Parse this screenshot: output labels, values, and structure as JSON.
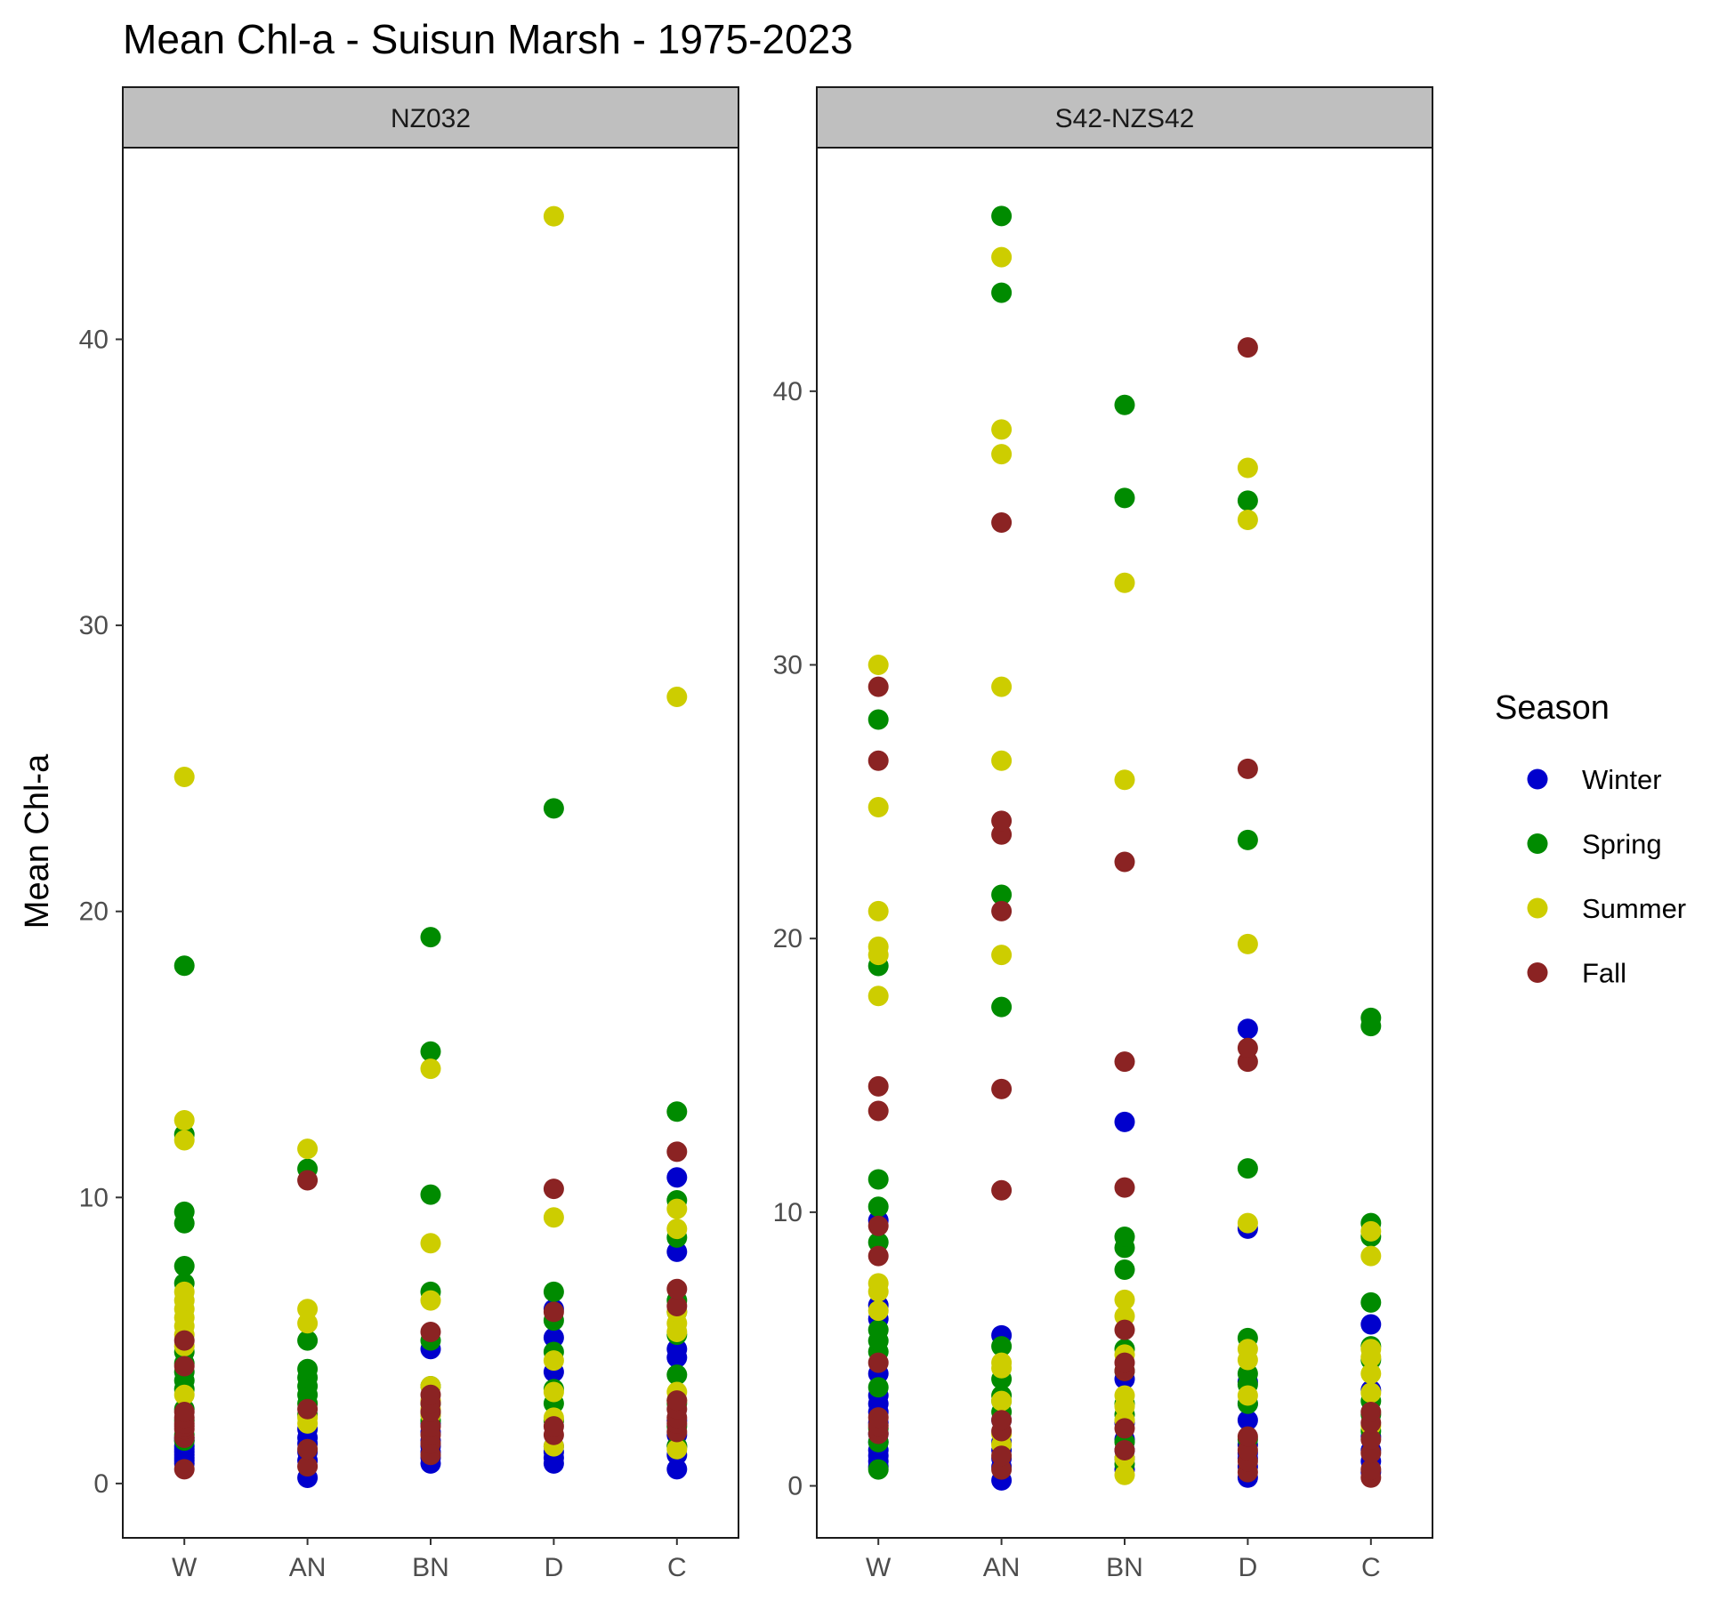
{
  "chart_data": {
    "type": "scatter",
    "title": "Mean Chl-a - Suisun Marsh - 1975-2023",
    "ylabel": "Mean Chl-a",
    "xlabel": "",
    "categories": [
      "W",
      "AN",
      "BN",
      "D",
      "C"
    ],
    "legend": {
      "title": "Season",
      "position": "right",
      "entries": [
        {
          "name": "Winter",
          "color": "#0000CD"
        },
        {
          "name": "Spring",
          "color": "#008B00"
        },
        {
          "name": "Summer",
          "color": "#CDCD00"
        },
        {
          "name": "Fall",
          "color": "#8B2323"
        }
      ]
    },
    "grid": false,
    "panels": [
      {
        "strip": "NZ032",
        "ylim": [
          -1.9,
          46.7
        ],
        "yticks": [
          0,
          10,
          20,
          30,
          40
        ],
        "points": {
          "W": {
            "Winter": [
              0.7,
              0.8,
              0.9,
              1.0,
              1.1,
              1.2,
              1.3,
              1.5,
              1.6
            ],
            "Spring": [
              1.5,
              1.7,
              2.2,
              2.6,
              3.3,
              3.6,
              3.9,
              4.2,
              4.6,
              7.0,
              7.6,
              9.1,
              9.5,
              12.2,
              18.1
            ],
            "Summer": [
              3.1,
              4.8,
              5.2,
              5.5,
              5.8,
              6.1,
              6.4,
              6.7,
              12.0,
              12.7,
              24.7
            ],
            "Fall": [
              0.5,
              1.6,
              1.9,
              2.0,
              2.1,
              2.3,
              2.5,
              4.1,
              5.0
            ]
          },
          "AN": {
            "Winter": [
              0.2,
              0.8,
              1.1,
              1.4,
              1.6,
              1.9
            ],
            "Spring": [
              2.4,
              2.8,
              3.1,
              3.4,
              3.7,
              4.0,
              5.0,
              11.0
            ],
            "Summer": [
              2.1,
              2.3,
              5.6,
              6.1,
              11.7
            ],
            "Fall": [
              0.6,
              1.2,
              2.6,
              10.6
            ]
          },
          "BN": {
            "Winter": [
              0.7,
              0.9,
              1.1,
              1.3,
              1.5,
              1.8,
              2.1,
              2.4,
              4.7
            ],
            "Spring": [
              2.2,
              2.5,
              2.8,
              3.4,
              5.0,
              6.7,
              10.1,
              15.1,
              19.1
            ],
            "Summer": [
              2.4,
              2.6,
              2.9,
              3.4,
              6.4,
              8.4,
              14.5
            ],
            "Fall": [
              1.0,
              1.4,
              1.7,
              2.0,
              2.5,
              2.8,
              3.1,
              5.3
            ]
          },
          "D": {
            "Winter": [
              0.7,
              0.9,
              1.1,
              1.3,
              3.9,
              5.1,
              6.1
            ],
            "Spring": [
              2.2,
              2.8,
              3.3,
              4.6,
              5.7,
              6.7,
              23.6
            ],
            "Summer": [
              1.3,
              2.3,
              3.2,
              4.3,
              9.3,
              44.3
            ],
            "Fall": [
              1.7,
              2.0,
              6.0,
              10.3
            ]
          },
          "C": {
            "Winter": [
              0.5,
              1.0,
              1.3,
              1.7,
              2.2,
              4.4,
              4.7,
              8.1,
              10.7
            ],
            "Spring": [
              1.3,
              2.0,
              2.8,
              3.8,
              5.2,
              6.0,
              6.4,
              8.6,
              9.9,
              13.0
            ],
            "Summer": [
              1.2,
              2.9,
              3.2,
              5.3,
              5.6,
              6.0,
              8.9,
              9.6,
              27.5
            ],
            "Fall": [
              1.8,
              2.1,
              2.3,
              2.6,
              2.9,
              6.2,
              6.8,
              11.6
            ]
          }
        }
      },
      {
        "strip": "S42-NZS42",
        "ylim": [
          -1.9,
          48.9
        ],
        "yticks": [
          0,
          10,
          20,
          30,
          40
        ],
        "points": {
          "W": {
            "Winter": [
              0.7,
              0.9,
              1.1,
              1.3,
              1.6,
              1.9,
              2.3,
              2.7,
              3.0,
              3.3,
              4.1,
              6.1,
              6.6,
              9.7
            ],
            "Spring": [
              0.6,
              1.6,
              2.1,
              3.6,
              4.9,
              5.3,
              5.7,
              8.9,
              10.2,
              11.2,
              19.0,
              28.0
            ],
            "Summer": [
              6.4,
              7.1,
              7.4,
              17.9,
              19.4,
              19.7,
              21.0,
              24.8,
              30.0
            ],
            "Fall": [
              1.9,
              2.2,
              2.5,
              4.5,
              8.4,
              9.5,
              13.7,
              14.6,
              26.5,
              29.2
            ]
          },
          "AN": {
            "Winter": [
              0.2,
              0.7,
              1.0,
              1.3,
              1.6,
              2.4,
              5.5
            ],
            "Spring": [
              2.7,
              3.1,
              3.3,
              3.9,
              5.1,
              17.5,
              21.6,
              43.6,
              46.4
            ],
            "Summer": [
              1.5,
              1.9,
              3.1,
              4.3,
              4.5,
              19.4,
              26.5,
              29.2,
              37.7,
              38.6,
              44.9
            ],
            "Fall": [
              0.6,
              1.1,
              2.0,
              2.4,
              10.8,
              14.5,
              21.0,
              23.8,
              24.3,
              35.2
            ]
          },
          "BN": {
            "Winter": [
              0.6,
              1.0,
              1.3,
              1.7,
              2.3,
              3.9,
              13.3
            ],
            "Spring": [
              0.8,
              1.6,
              2.6,
              3.0,
              4.2,
              5.0,
              7.9,
              8.7,
              9.1,
              36.1,
              39.5
            ],
            "Summer": [
              0.4,
              1.0,
              2.4,
              2.9,
              3.3,
              4.8,
              6.2,
              6.8,
              25.8,
              33.0
            ],
            "Fall": [
              1.3,
              2.1,
              4.2,
              4.5,
              5.7,
              10.9,
              15.5,
              22.8
            ]
          },
          "D": {
            "Winter": [
              0.3,
              0.7,
              1.0,
              1.2,
              1.5,
              2.4,
              3.0,
              3.8,
              9.4,
              16.7
            ],
            "Spring": [
              1.7,
              3.0,
              3.7,
              4.1,
              5.4,
              11.6,
              23.6,
              36.0
            ],
            "Summer": [
              3.3,
              4.6,
              5.0,
              9.6,
              19.8,
              35.3,
              37.2
            ],
            "Fall": [
              0.5,
              0.9,
              1.3,
              1.8,
              15.5,
              16.0,
              26.2,
              41.6
            ]
          },
          "C": {
            "Winter": [
              0.5,
              0.9,
              1.3,
              1.8,
              3.5,
              5.9
            ],
            "Spring": [
              2.0,
              2.6,
              3.1,
              4.6,
              5.1,
              6.7,
              9.1,
              9.6,
              16.8,
              17.1
            ],
            "Summer": [
              2.2,
              3.4,
              4.1,
              4.7,
              5.0,
              8.4,
              9.3
            ],
            "Fall": [
              0.3,
              0.6,
              1.2,
              1.7,
              2.3,
              2.7
            ]
          }
        }
      }
    ]
  }
}
